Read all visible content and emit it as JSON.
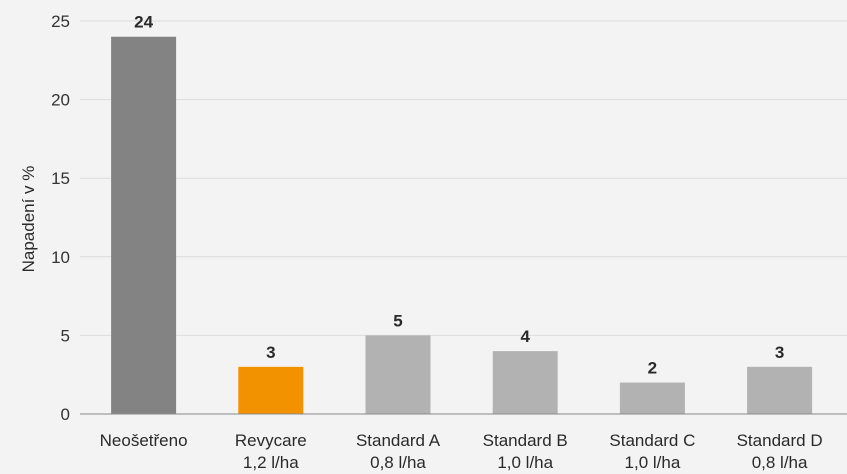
{
  "chart_data": {
    "type": "bar",
    "title": "",
    "xlabel": "",
    "ylabel": "Napadení v %",
    "ylim": [
      0,
      25
    ],
    "yticks": [
      0,
      5,
      10,
      15,
      20,
      25
    ],
    "grid": true,
    "legend": "none",
    "categories": [
      [
        "Neošetřeno"
      ],
      [
        "Revycare",
        "1,2 l/ha"
      ],
      [
        "Standard A",
        "0,8 l/ha"
      ],
      [
        "Standard B",
        "1,0 l/ha"
      ],
      [
        "Standard C",
        "1,0 l/ha"
      ],
      [
        "Standard D",
        "0,8 l/ha"
      ]
    ],
    "values": [
      24,
      3,
      5,
      4,
      2,
      3
    ],
    "bar_colors": [
      "#838383",
      "#f39200",
      "#b2b2b2",
      "#b2b2b2",
      "#b2b2b2",
      "#b2b2b2"
    ]
  }
}
